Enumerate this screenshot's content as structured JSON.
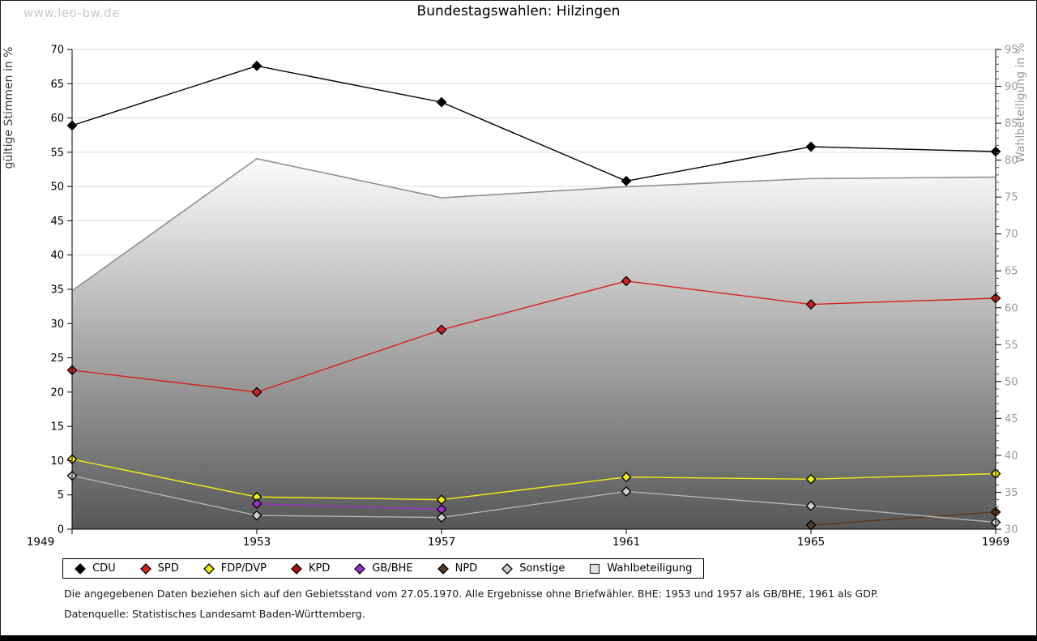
{
  "watermark": "www.leo-bw.de",
  "title": "Bundestagswahlen: Hilzingen",
  "footnotes": {
    "line1": "Die angegebenen Daten beziehen sich auf den Gebietsstand vom 27.05.1970. Alle Ergebnisse ohne Briefwähler. BHE: 1953 und 1957 als GB/BHE, 1961 als GDP.",
    "line2": "Datenquelle: Statistisches Landesamt Baden-Württemberg."
  },
  "chart_data": {
    "type": "line",
    "title": "Bundestagswahlen: Hilzingen",
    "x": [
      1949,
      1953,
      1957,
      1961,
      1965,
      1969
    ],
    "left_axis": {
      "label": "gültige Stimmen in %",
      "min": 0,
      "max": 70,
      "ticks": [
        0,
        5,
        10,
        15,
        20,
        25,
        30,
        35,
        40,
        45,
        50,
        55,
        60,
        65,
        70
      ]
    },
    "right_axis": {
      "label": "Wahlbeteiligung in %",
      "min": 30,
      "max": 95,
      "ticks": [
        30,
        35,
        40,
        45,
        50,
        55,
        60,
        65,
        70,
        75,
        80,
        85,
        90,
        95
      ],
      "minor_tick_step": 1
    },
    "grid": {
      "horizontal": true,
      "color": "#d9d9d9"
    },
    "legend_position": "bottom",
    "series": [
      {
        "name": "CDU",
        "axis": "left",
        "marker": "diamond",
        "color": "#000000",
        "values": [
          58.9,
          67.6,
          62.3,
          50.8,
          55.8,
          55.1
        ]
      },
      {
        "name": "SPD",
        "axis": "left",
        "marker": "diamond",
        "color": "#d62020",
        "values": [
          23.2,
          20.0,
          29.1,
          36.2,
          32.8,
          33.7
        ]
      },
      {
        "name": "FDP/DVP",
        "axis": "left",
        "marker": "diamond",
        "color": "#efef10",
        "values": [
          10.2,
          4.7,
          4.3,
          7.6,
          7.3,
          8.1
        ]
      },
      {
        "name": "KPD",
        "axis": "left",
        "marker": "diamond",
        "color": "#b01010",
        "values": [
          null,
          null,
          null,
          null,
          null,
          null
        ]
      },
      {
        "name": "GB/BHE",
        "axis": "left",
        "marker": "diamond",
        "color": "#9933cc",
        "values": [
          null,
          3.7,
          2.9,
          null,
          null,
          null
        ]
      },
      {
        "name": "NPD",
        "axis": "left",
        "marker": "diamond",
        "color": "#5a3a22",
        "values": [
          null,
          null,
          null,
          null,
          0.6,
          2.5
        ]
      },
      {
        "name": "Sonstige",
        "axis": "left",
        "marker": "diamond",
        "color": "#b4b4b4",
        "marker_fill": "#d0d0d0",
        "values": [
          7.8,
          2.0,
          1.7,
          5.5,
          3.4,
          1.0
        ]
      },
      {
        "name": "Wahlbeteiligung",
        "axis": "right",
        "type": "area",
        "legend_marker": "square",
        "line_color": "#8f8f8f",
        "fill_top": "#fcfcfc",
        "fill_bottom": "#575757",
        "legend_fill": "#e2e2e2",
        "values": [
          62.3,
          80.2,
          74.9,
          76.4,
          77.5,
          77.7
        ]
      }
    ]
  }
}
